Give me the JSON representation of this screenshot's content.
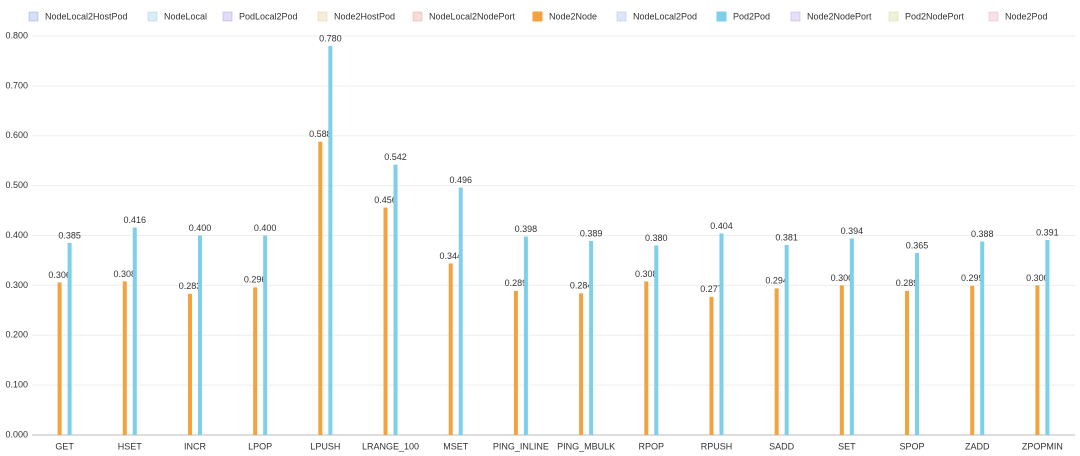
{
  "chart_data": {
    "type": "bar",
    "categories": [
      "GET",
      "HSET",
      "INCR",
      "LPOP",
      "LPUSH",
      "LRANGE_100",
      "MSET",
      "PING_INLINE",
      "PING_MBULK",
      "RPOP",
      "RPUSH",
      "SADD",
      "SET",
      "SPOP",
      "ZADD",
      "ZPOPMIN"
    ],
    "series": [
      {
        "name": "NodeLocal2HostPod",
        "color": "#5b7fd6",
        "visible": false
      },
      {
        "name": "NodeLocal",
        "color": "#6cb8e0",
        "visible": false
      },
      {
        "name": "PodLocal2Pod",
        "color": "#8a6fd6",
        "visible": false
      },
      {
        "name": "Node2HostPod",
        "color": "#d9b36a",
        "visible": false
      },
      {
        "name": "NodeLocal2NodePort",
        "color": "#d97a6a",
        "visible": false
      },
      {
        "name": "Node2Node",
        "color": "#f2a23e",
        "visible": true,
        "values": [
          0.306,
          0.308,
          0.283,
          0.296,
          0.588,
          0.456,
          0.344,
          0.289,
          0.284,
          0.308,
          0.277,
          0.294,
          0.3,
          0.289,
          0.299,
          0.3
        ],
        "value_labels": [
          "0.306",
          "0.308",
          "0.283",
          "0.296",
          "0.588",
          "0.456",
          "0.344",
          "0.289",
          "0.284",
          "0.308",
          "0.277",
          "0.294",
          "0.300",
          "0.289",
          "0.299",
          "0.300"
        ]
      },
      {
        "name": "NodeLocal2Pod",
        "color": "#7a9ee0",
        "visible": false
      },
      {
        "name": "Pod2Pod",
        "color": "#7ecfea",
        "visible": true,
        "values": [
          0.385,
          0.416,
          0.4,
          0.4,
          0.78,
          0.542,
          0.496,
          0.398,
          0.389,
          0.38,
          0.404,
          0.381,
          0.394,
          0.365,
          0.388,
          0.391
        ],
        "value_labels": [
          "0.385",
          "0.416",
          "0.400",
          "0.400",
          "0.780",
          "0.542",
          "0.496",
          "0.398",
          "0.389",
          "0.380",
          "0.404",
          "0.381",
          "0.394",
          "0.365",
          "0.388",
          "0.391"
        ]
      },
      {
        "name": "Node2NodePort",
        "color": "#9a7fe0",
        "visible": false
      },
      {
        "name": "Pod2NodePort",
        "color": "#b8cf6a",
        "visible": false
      },
      {
        "name": "Node2Pod",
        "color": "#e08aa0",
        "visible": false
      }
    ],
    "ylim": [
      0,
      0.8
    ],
    "yticks": [
      {
        "value": 0,
        "label": "0.000"
      },
      {
        "value": 0.1,
        "label": "0.100"
      },
      {
        "value": 0.2,
        "label": "0.200"
      },
      {
        "value": 0.3,
        "label": "0.300"
      },
      {
        "value": 0.4,
        "label": "0.400"
      },
      {
        "value": 0.5,
        "label": "0.500"
      },
      {
        "value": 0.6,
        "label": "0.600"
      },
      {
        "value": 0.7,
        "label": "0.700"
      },
      {
        "value": 0.8,
        "label": "0.800"
      }
    ],
    "grid": true,
    "legend": "top"
  }
}
